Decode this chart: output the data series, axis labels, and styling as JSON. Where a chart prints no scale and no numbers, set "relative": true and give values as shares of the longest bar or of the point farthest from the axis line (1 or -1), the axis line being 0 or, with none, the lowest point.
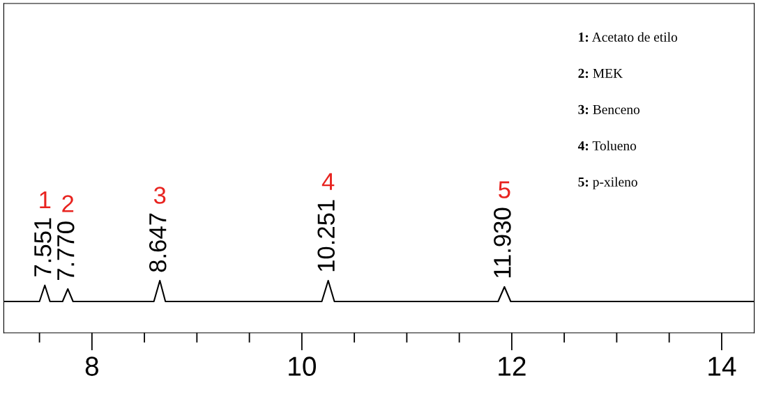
{
  "chart_data": {
    "type": "line",
    "relative": true,
    "color": "#000000",
    "x": [
      7.16,
      7.5,
      7.551,
      7.6,
      7.72,
      7.77,
      7.82,
      8.59,
      8.647,
      8.7,
      10.19,
      10.251,
      10.31,
      11.87,
      11.93,
      11.99,
      14.31
    ],
    "values": [
      0.6,
      0.6,
      0.91,
      0.6,
      0.6,
      0.84,
      0.6,
      0.6,
      1,
      0.6,
      0.6,
      1,
      0.6,
      0.6,
      0.88,
      0.6,
      0.6
    ],
    "xlim": [
      7.16,
      14.31
    ],
    "xticks": [
      {
        "value": 7.5,
        "label": null
      },
      8,
      {
        "value": 8.5,
        "label": null
      },
      {
        "value": 9,
        "label": null
      },
      {
        "value": 9.5,
        "label": null
      },
      10,
      {
        "value": 10.5,
        "label": null
      },
      {
        "value": 11,
        "label": null
      },
      {
        "value": 11.5,
        "label": null
      },
      12,
      {
        "value": 12.5,
        "label": null
      },
      {
        "value": 13,
        "label": null
      },
      {
        "value": 13.5,
        "label": null
      },
      14
    ],
    "grid": false,
    "annotations": [
      {
        "text": "7.551",
        "x": 7.551,
        "y": 0.91
      },
      {
        "text": "7.770",
        "x": 7.77,
        "y": 0.84
      },
      {
        "text": "8.647",
        "x": 8.647,
        "y": 1
      },
      {
        "text": "10.251",
        "x": 10.251,
        "y": 1
      },
      {
        "text": "11.930",
        "x": 11.93,
        "y": 0.88
      },
      "1",
      "2",
      "3",
      "4",
      "5",
      "1: Acetato de etilo",
      "2: MEK",
      "3: Benceno",
      "4: Tolueno",
      "5: p-xileno"
    ]
  }
}
